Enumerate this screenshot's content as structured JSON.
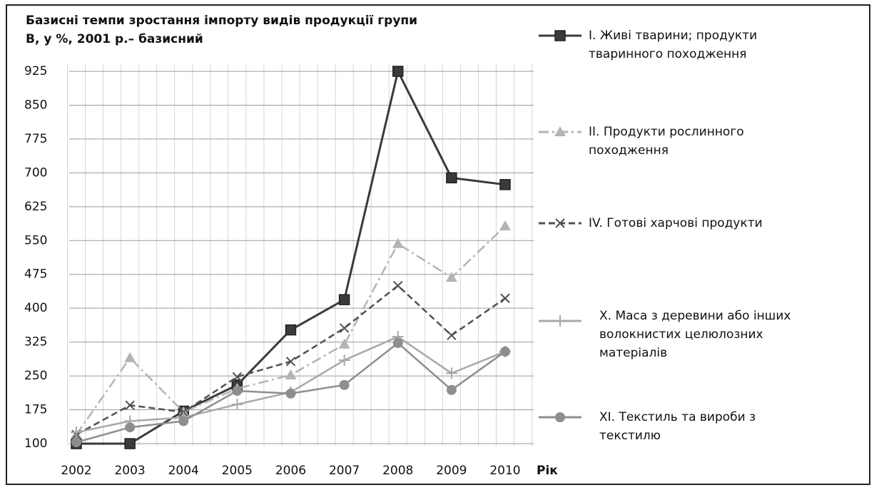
{
  "chart_data": {
    "type": "line",
    "title": "Базисні темпи зростання імпорту видів продукції групи В, у %, 2001 р.– базисний",
    "x_label": "Рік",
    "categories": [
      "2002",
      "2003",
      "2004",
      "2005",
      "2006",
      "2007",
      "2008",
      "2009",
      "2010"
    ],
    "ylim": [
      100,
      925
    ],
    "yticks": [
      100,
      175,
      250,
      325,
      400,
      475,
      550,
      625,
      700,
      775,
      850,
      925
    ],
    "grid": true,
    "legend": "right",
    "series": [
      {
        "name": "I. Живі тварини; продукти тваринного походження",
        "color": "#3a3a3a",
        "dash": "solid",
        "marker": "square",
        "values": [
          100,
          100,
          172,
          230,
          352,
          419,
          925,
          689,
          674
        ]
      },
      {
        "name": "II.  Продукти рослинного походження",
        "color": "#b4b4b4",
        "dash": "dashdot",
        "marker": "triangle",
        "values": [
          120,
          290,
          170,
          222,
          252,
          320,
          543,
          468,
          582
        ]
      },
      {
        "name": "IV. Готові харчові продукти",
        "color": "#505050",
        "dash": "dashed",
        "marker": "x",
        "values": [
          120,
          185,
          170,
          248,
          282,
          356,
          450,
          340,
          422
        ]
      },
      {
        "name": "X. Маса з деревини або інших волокнистих целюлозних матеріалів",
        "color": "#a8a8a8",
        "dash": "solid",
        "marker": "plus",
        "values": [
          125,
          150,
          158,
          187,
          214,
          285,
          337,
          256,
          304
        ]
      },
      {
        "name": "XI. Текстиль та вироби з текстилю",
        "color": "#8e8e8e",
        "dash": "solid",
        "marker": "circle",
        "values": [
          103,
          136,
          150,
          217,
          211,
          230,
          323,
          219,
          304
        ]
      }
    ]
  }
}
